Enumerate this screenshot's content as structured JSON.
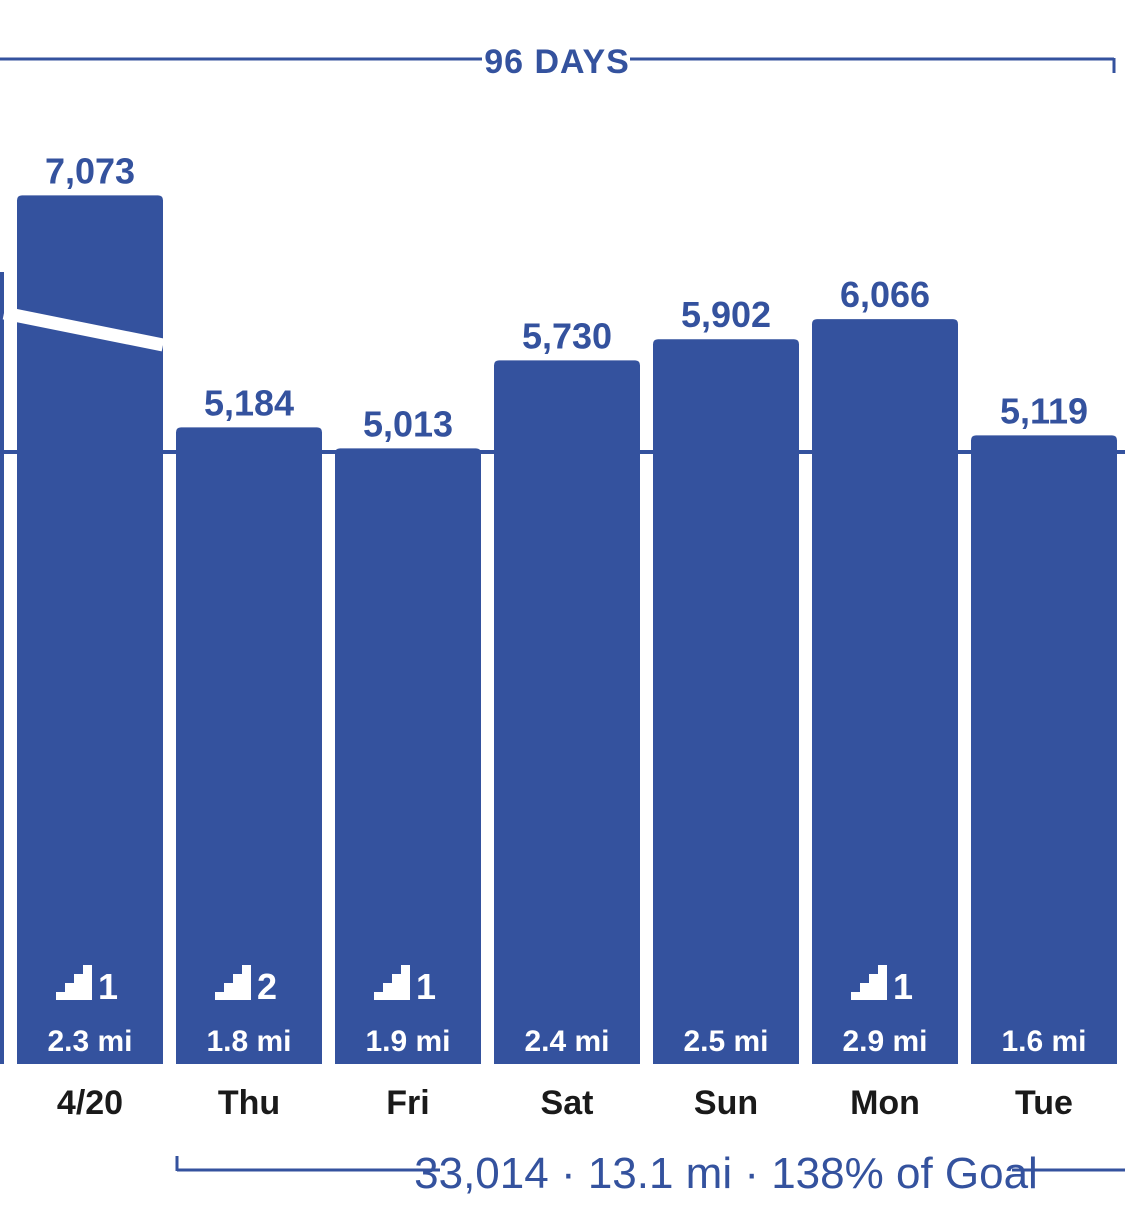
{
  "header": {
    "streak_label": "96 DAYS"
  },
  "footer": {
    "summary_label": "33,014 · 13.1 mi · 138% of Goal"
  },
  "colors": {
    "bar": "#34529e",
    "text": "#34529e",
    "axis_text": "#1a1a1a",
    "inner_text": "#ffffff",
    "background": "#ffffff"
  },
  "chart_data": {
    "type": "bar",
    "categories": [
      "4/20",
      "Thu",
      "Fri",
      "Sat",
      "Sun",
      "Mon",
      "Tue"
    ],
    "values": [
      7073,
      5184,
      5013,
      5730,
      5902,
      6066,
      5119
    ],
    "value_labels": [
      "7,073",
      "5,184",
      "5,013",
      "5,730",
      "5,902",
      "6,066",
      "5,119"
    ],
    "distance_labels": [
      "2.3 mi",
      "1.8 mi",
      "1.9 mi",
      "2.4 mi",
      "2.5 mi",
      "2.9 mi",
      "1.6 mi"
    ],
    "floors": [
      1,
      2,
      1,
      null,
      null,
      1,
      null
    ],
    "floors_icon": "stairs-icon",
    "goal_line": true,
    "previous_average_line": true,
    "title": "",
    "xlabel": "",
    "ylabel": ""
  }
}
